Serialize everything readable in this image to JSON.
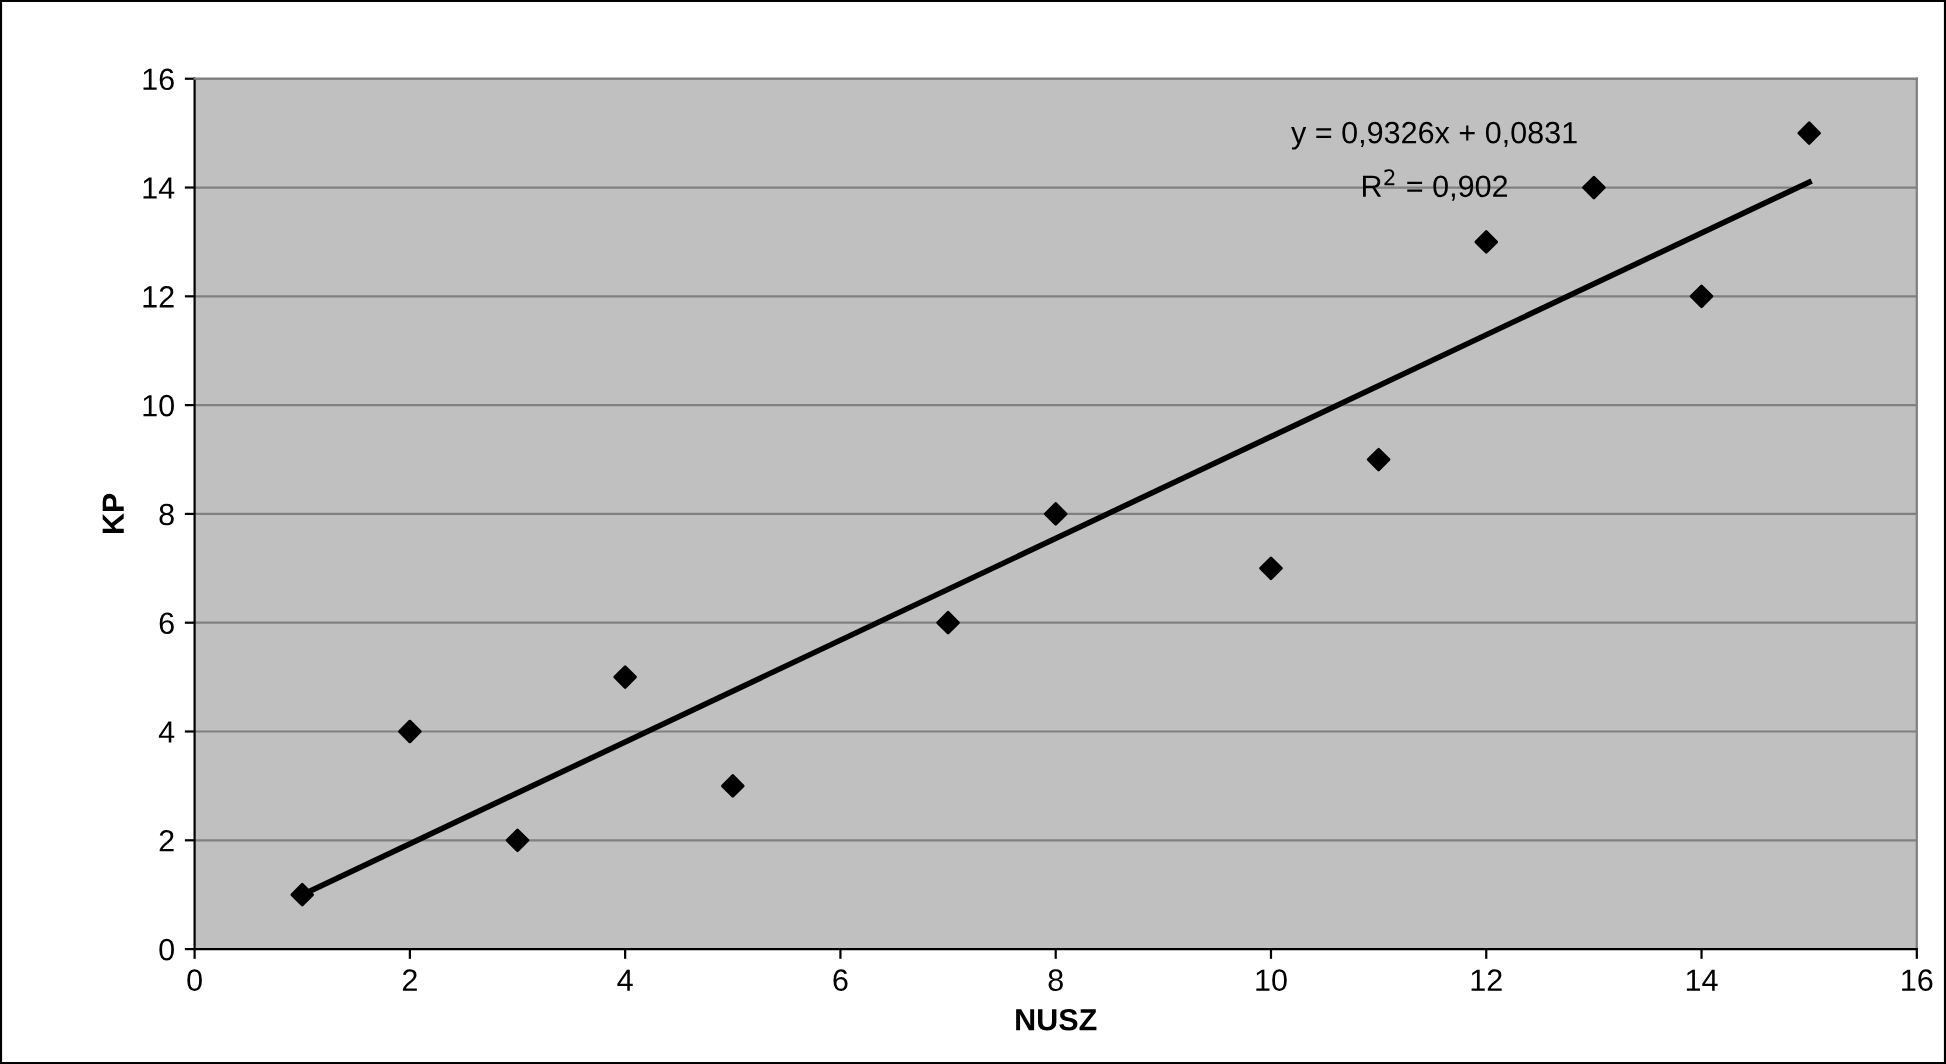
{
  "chart_data": {
    "type": "scatter",
    "xlabel": "NUSZ",
    "ylabel": "KP",
    "xlim": [
      0,
      16
    ],
    "ylim": [
      0,
      16
    ],
    "xticks": [
      0,
      2,
      4,
      6,
      8,
      10,
      12,
      14,
      16
    ],
    "yticks": [
      0,
      2,
      4,
      6,
      8,
      10,
      12,
      14,
      16
    ],
    "grid": "y",
    "marker": "diamond",
    "series": [
      {
        "color": "#000000",
        "x": [
          1,
          2,
          3,
          4,
          5,
          7,
          8,
          10,
          11,
          12,
          13,
          14,
          15
        ],
        "values": [
          1,
          4,
          2,
          5,
          3,
          6,
          8,
          7,
          9,
          13,
          14,
          12,
          15
        ]
      },
      {
        "type": "line",
        "color": "#000000",
        "x": [
          1,
          15
        ],
        "values": [
          1.0,
          14.1
        ],
        "marker": "none",
        "line_style": "solid"
      }
    ],
    "annotations": [
      "y = 0,9326x + 0,0831",
      "R$^{2}$ = 0,902"
    ]
  }
}
